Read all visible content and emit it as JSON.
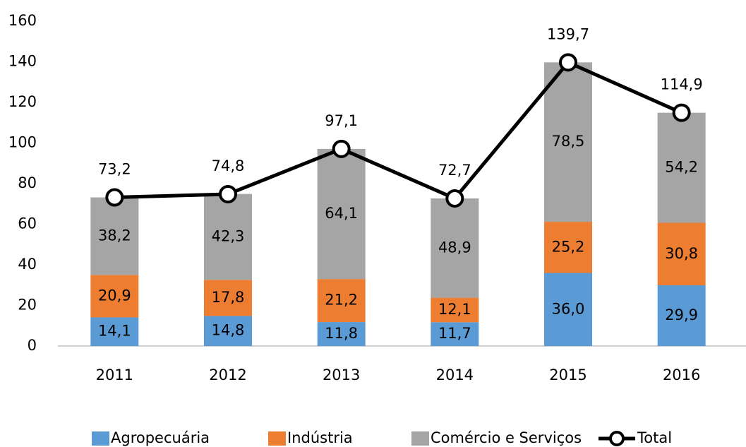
{
  "chart_data": {
    "type": "bar",
    "stacked": true,
    "grid": false,
    "legend": "bottom",
    "categories": [
      "2011",
      "2012",
      "2013",
      "2014",
      "2015",
      "2016"
    ],
    "ylim": [
      0,
      160
    ],
    "yticks": [
      0,
      20,
      40,
      60,
      80,
      100,
      120,
      140,
      160
    ],
    "series": [
      {
        "name": "Agropecuária",
        "color": "#5b9bd5",
        "values": [
          14.1,
          14.8,
          11.8,
          11.7,
          36.0,
          29.9
        ],
        "value_labels": [
          "14,1",
          "14,8",
          "11,8",
          "11,7",
          "36,0",
          "29,9"
        ]
      },
      {
        "name": "Indústria",
        "color": "#ed7d31",
        "values": [
          20.9,
          17.8,
          21.2,
          12.1,
          25.2,
          30.8
        ],
        "value_labels": [
          "20,9",
          "17,8",
          "21,2",
          "12,1",
          "25,2",
          "30,8"
        ]
      },
      {
        "name": "Comércio e Serviços",
        "color": "#a5a5a5",
        "values": [
          38.2,
          42.3,
          64.1,
          48.9,
          78.5,
          54.2
        ],
        "value_labels": [
          "38,2",
          "42,3",
          "64,1",
          "48,9",
          "78,5",
          "54,2"
        ]
      },
      {
        "name": "Total",
        "type": "line",
        "color": "#000000",
        "values": [
          73.2,
          74.8,
          97.1,
          72.7,
          139.7,
          114.9
        ],
        "value_labels": [
          "73,2",
          "74,8",
          "97,1",
          "72,7",
          "139,7",
          "114,9"
        ]
      }
    ]
  }
}
